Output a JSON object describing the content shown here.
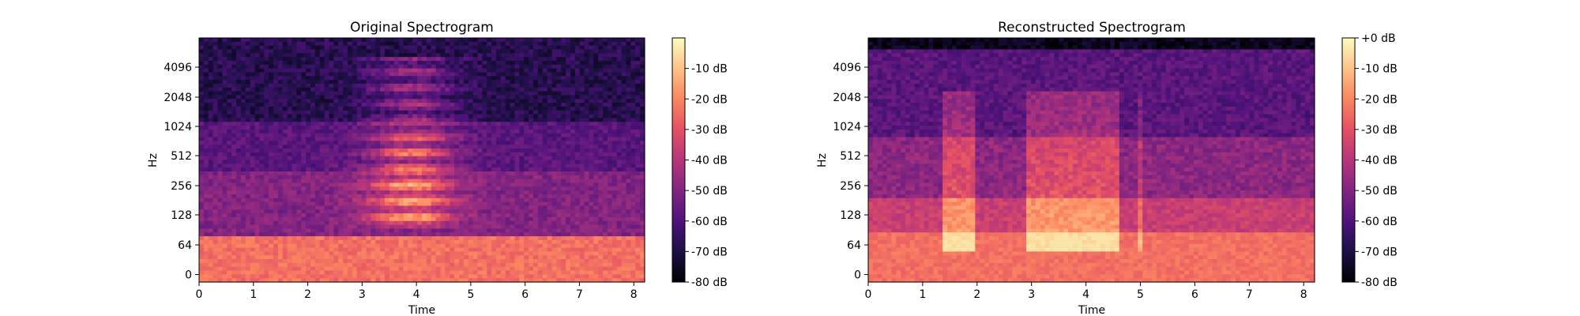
{
  "chart_data": [
    {
      "type": "heatmap",
      "title": "Original Spectrogram",
      "xlabel": "Time",
      "ylabel": "Hz",
      "xlim": [
        0,
        8.2
      ],
      "x_ticks": [
        "0",
        "1",
        "2",
        "3",
        "4",
        "5",
        "6",
        "7",
        "8"
      ],
      "y_scale": "log-frequency (mel)",
      "y_ticks": [
        "0",
        "64",
        "128",
        "256",
        "512",
        "1024",
        "2048",
        "4096"
      ],
      "colorbar_label_values": [
        "-10 dB",
        "-20 dB",
        "-30 dB",
        "-40 dB",
        "-50 dB",
        "-60 dB",
        "-70 dB",
        "-80 dB"
      ],
      "color_range_db": [
        -80,
        0
      ],
      "colormap": "magma",
      "approx_regions": [
        {
          "time": [
            0,
            8.2
          ],
          "freq": "0-80 Hz",
          "level_db": -22
        },
        {
          "time": [
            0,
            8.2
          ],
          "freq": "128-512 Hz",
          "level_db": -50
        },
        {
          "time": [
            0,
            8.2
          ],
          "freq": "1024-8192 Hz",
          "level_db": -68
        },
        {
          "time": [
            3.0,
            4.8
          ],
          "freq": "200-4096 Hz (harmonics)",
          "level_db": -12
        }
      ]
    },
    {
      "type": "heatmap",
      "title": "Reconstructed Spectrogram",
      "xlabel": "Time",
      "ylabel": "Hz",
      "xlim": [
        0,
        8.2
      ],
      "x_ticks": [
        "0",
        "1",
        "2",
        "3",
        "4",
        "5",
        "6",
        "7",
        "8"
      ],
      "y_scale": "log-frequency (mel)",
      "y_ticks": [
        "0",
        "64",
        "128",
        "256",
        "512",
        "1024",
        "2048",
        "4096"
      ],
      "colorbar_label_values": [
        "+0 dB",
        "-10 dB",
        "-20 dB",
        "-30 dB",
        "-40 dB",
        "-50 dB",
        "-60 dB",
        "-70 dB",
        "-80 dB"
      ],
      "color_range_db": [
        -80,
        0
      ],
      "colormap": "magma",
      "approx_regions": [
        {
          "time": [
            0,
            8.2
          ],
          "freq": "0-256 Hz",
          "level_db": -25
        },
        {
          "time": [
            0,
            8.2
          ],
          "freq": "256-4096 Hz",
          "level_db": -50
        },
        {
          "time": [
            1.35,
            2.0
          ],
          "freq": "80-2048 Hz",
          "level_db": -25
        },
        {
          "time": [
            2.9,
            4.6
          ],
          "freq": "80-2048 Hz",
          "level_db": -22
        },
        {
          "time": [
            0,
            8.2
          ],
          "freq": "top band",
          "level_db": -78
        }
      ]
    }
  ]
}
